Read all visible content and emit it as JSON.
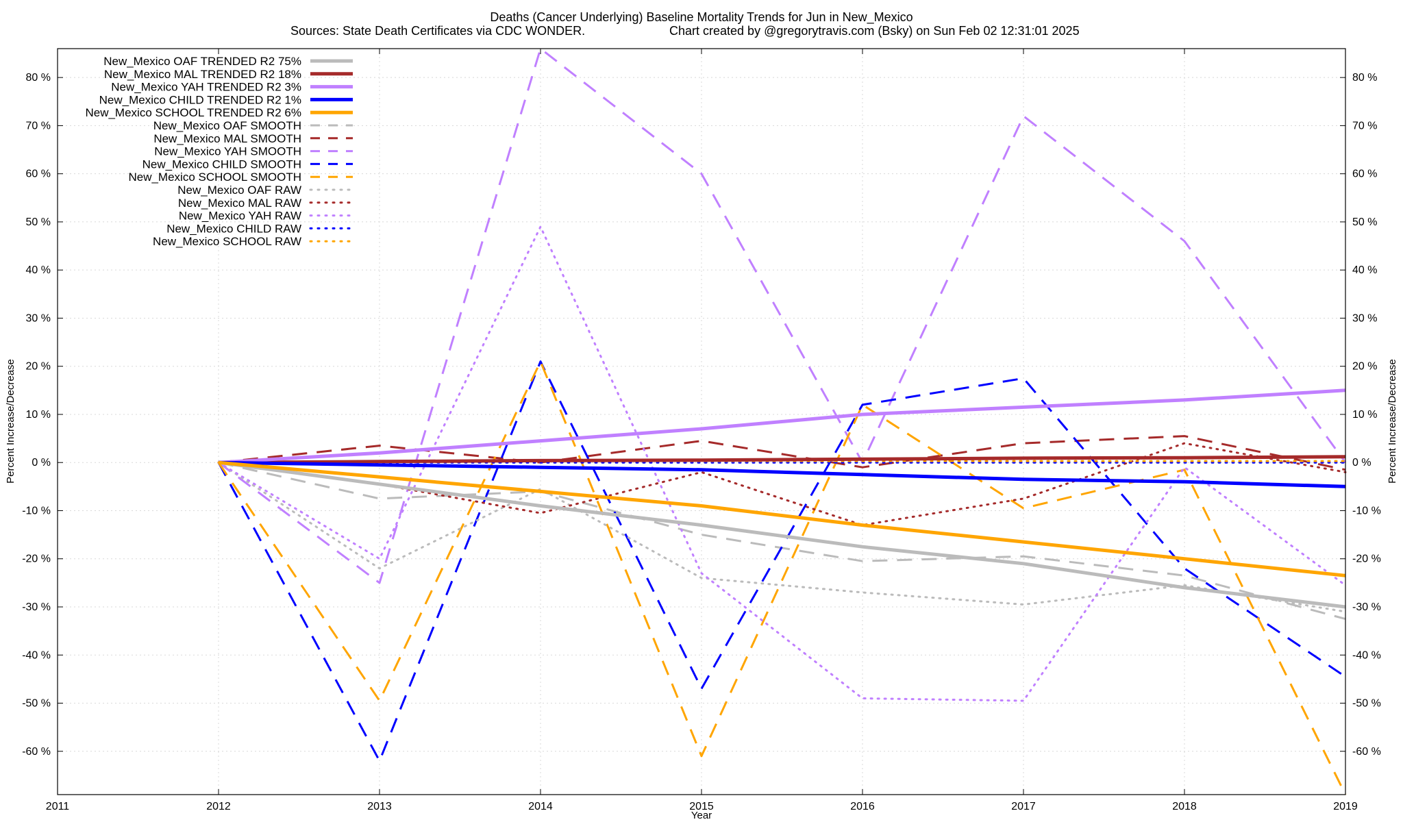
{
  "chart_data": {
    "type": "line",
    "title": "Deaths (Cancer Underlying)  Baseline Mortality Trends for Jun in New_Mexico",
    "subtitle_left": "Sources: State Death Certificates via CDC WONDER.",
    "subtitle_right": "Chart created by @gregorytravis.com (Bsky) on Sun Feb 02 12:31:01 2025",
    "xlabel": "Year",
    "ylabel": "Percent Increase/Decrease",
    "ylabel_right": "Percent Increase/Decrease",
    "xlim": [
      2011,
      2019
    ],
    "ylim": [
      -69,
      86
    ],
    "grid": true,
    "legend_position": "top-left",
    "x_ticks": [
      "2011",
      "2012",
      "2013",
      "2014",
      "2015",
      "2016",
      "2017",
      "2018",
      "2019"
    ],
    "y_ticks": [
      "80 %",
      "70 %",
      "60 %",
      "50 %",
      "40 %",
      "30 %",
      "20 %",
      "10 %",
      "0 %",
      "-10 %",
      "-20 %",
      "-30 %",
      "-40 %",
      "-50 %",
      "-60 %"
    ],
    "x": [
      2012,
      2013,
      2014,
      2015,
      2016,
      2017,
      2018,
      2019
    ],
    "series": [
      {
        "name": "New_Mexico OAF TRENDED R2  75%",
        "color": "#bbbbbb",
        "style": "solid",
        "values": [
          0,
          -4.5,
          -9,
          -13,
          -17.5,
          -21,
          -26,
          -30
        ]
      },
      {
        "name": "New_Mexico MAL TRENDED R2  18%",
        "color": "#a52a2a",
        "style": "solid",
        "values": [
          0,
          0.2,
          0.4,
          0.5,
          0.7,
          0.9,
          1.0,
          1.2
        ]
      },
      {
        "name": "New_Mexico YAH TRENDED R2   3%",
        "color": "#c080ff",
        "style": "solid",
        "values": [
          0,
          2,
          4.5,
          7,
          10,
          11.5,
          13,
          15
        ]
      },
      {
        "name": "New_Mexico CHILD TRENDED R2   1%",
        "color": "#0000ff",
        "style": "solid",
        "values": [
          0,
          -0.5,
          -1,
          -1.5,
          -2.5,
          -3.5,
          -4,
          -5
        ]
      },
      {
        "name": "New_Mexico SCHOOL TRENDED R2   6%",
        "color": "#ffa500",
        "style": "solid",
        "values": [
          0,
          -3,
          -6,
          -9,
          -13,
          -16.5,
          -20,
          -23.5
        ]
      },
      {
        "name": "New_Mexico OAF SMOOTH",
        "color": "#bbbbbb",
        "style": "dashed",
        "values": [
          0,
          -7.5,
          -6,
          -15,
          -20.5,
          -19.5,
          -23.5,
          -32.5
        ]
      },
      {
        "name": "New_Mexico MAL SMOOTH",
        "color": "#a52a2a",
        "style": "dashed",
        "values": [
          0,
          3.5,
          0,
          4.5,
          -1,
          4,
          5.5,
          -1.5
        ]
      },
      {
        "name": "New_Mexico YAH SMOOTH",
        "color": "#c080ff",
        "style": "dashed",
        "values": [
          0,
          -25,
          86,
          60,
          0,
          72,
          46,
          0
        ]
      },
      {
        "name": "New_Mexico CHILD SMOOTH",
        "color": "#0000ff",
        "style": "dashed",
        "values": [
          0,
          -62,
          21,
          -47,
          12,
          17.5,
          -22,
          -44.5
        ]
      },
      {
        "name": "New_Mexico SCHOOL SMOOTH",
        "color": "#ffa500",
        "style": "dashed",
        "values": [
          0,
          -49.5,
          21,
          -61,
          12,
          -9.5,
          -1.5,
          -69
        ]
      },
      {
        "name": "New_Mexico OAF RAW",
        "color": "#bbbbbb",
        "style": "dotted",
        "values": [
          0,
          -22,
          -5.5,
          -24,
          -27,
          -29.5,
          -25.5,
          -31
        ]
      },
      {
        "name": "New_Mexico MAL RAW",
        "color": "#a52a2a",
        "style": "dotted",
        "values": [
          0,
          -4.5,
          -10.5,
          -2,
          -13,
          -7.5,
          4,
          -2
        ]
      },
      {
        "name": "New_Mexico YAH RAW",
        "color": "#c080ff",
        "style": "dotted",
        "values": [
          0,
          -20,
          49,
          -23,
          -49,
          -49.5,
          -1,
          -25.5
        ]
      },
      {
        "name": "New_Mexico CHILD RAW",
        "color": "#0000ff",
        "style": "dotted",
        "values": [
          0,
          0,
          0,
          0,
          0,
          0,
          0,
          0
        ]
      },
      {
        "name": "New_Mexico SCHOOL RAW",
        "color": "#ffa500",
        "style": "dotted",
        "values": [
          0,
          0.2,
          0.3,
          0.3,
          0.3,
          0.3,
          0.3,
          0.3
        ]
      }
    ]
  }
}
